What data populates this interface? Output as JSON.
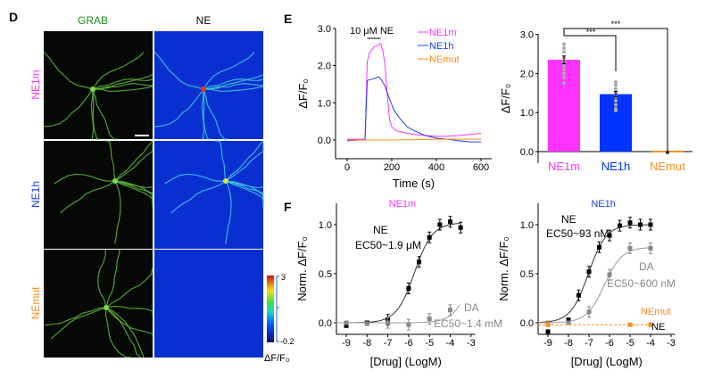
{
  "panel_d": {
    "label": "D",
    "col_headers": [
      "GRAB",
      "NE"
    ],
    "row_labels": [
      "NE1m",
      "NE1h",
      "NEmut"
    ],
    "row_colors": [
      "#ff33ff",
      "#1a3cff",
      "#ff8c1a"
    ],
    "colorbar": {
      "max": "3",
      "min": "-0.2",
      "label": "ΔF/F₀"
    }
  },
  "chart_data": [
    {
      "panel": "E",
      "type": "line",
      "ylabel": "ΔF/F₀",
      "xlabel": "Time (s)",
      "xlim": [
        -50,
        620
      ],
      "ylim": [
        -0.5,
        3.0
      ],
      "xticks": [
        "0",
        "200",
        "400",
        "600"
      ],
      "yticks": [
        "0.0",
        "1.0",
        "2.0",
        "3.0"
      ],
      "annotation": "10 μM NE",
      "stim": [
        90,
        150
      ],
      "legend_position": "top-right",
      "series": [
        {
          "name": "NE1m",
          "color": "#ff33ff",
          "x": [
            0,
            60,
            80,
            90,
            100,
            120,
            140,
            150,
            160,
            170,
            180,
            190,
            200,
            220,
            250,
            300,
            350,
            400,
            450,
            500,
            550,
            600
          ],
          "y": [
            0.02,
            0.02,
            0.02,
            2.1,
            2.35,
            2.5,
            2.55,
            2.6,
            2.4,
            2.0,
            1.2,
            0.55,
            0.35,
            0.25,
            0.2,
            0.15,
            0.12,
            0.1,
            0.1,
            0.12,
            0.15,
            0.18
          ]
        },
        {
          "name": "NE1h",
          "color": "#1a3cff",
          "x": [
            0,
            60,
            80,
            90,
            100,
            120,
            140,
            150,
            170,
            190,
            210,
            240,
            270,
            300,
            350,
            400,
            450,
            500,
            550,
            600
          ],
          "y": [
            -0.02,
            0.0,
            0.0,
            1.6,
            1.62,
            1.65,
            1.7,
            1.65,
            1.45,
            1.1,
            0.8,
            0.55,
            0.35,
            0.25,
            0.12,
            0.05,
            0.02,
            -0.02,
            -0.05,
            -0.05
          ]
        },
        {
          "name": "NEmut",
          "color": "#ff8c1a",
          "x": [
            0,
            100,
            200,
            300,
            400,
            500,
            600
          ],
          "y": [
            0.0,
            0.0,
            0.0,
            0.01,
            0.02,
            0.02,
            0.02
          ]
        }
      ]
    },
    {
      "panel": "E-bar",
      "type": "bar",
      "ylabel": "ΔF/F₀",
      "ylim": [
        -0.3,
        3.0
      ],
      "yticks": [
        "0.0",
        "1.0",
        "2.0",
        "3.0"
      ],
      "categories": [
        "NE1m",
        "NE1h",
        "NEmut"
      ],
      "colors": [
        "#ff33ff",
        "#0033ff",
        "#ff8c1a"
      ],
      "values": [
        2.35,
        1.47,
        -0.02
      ],
      "errors": [
        0.1,
        0.07,
        0.02
      ],
      "points": [
        [
          1.75,
          1.9,
          2.0,
          2.1,
          2.2,
          2.3,
          2.4,
          2.55,
          2.65,
          2.75
        ],
        [
          1.05,
          1.1,
          1.2,
          1.3,
          1.4,
          1.5,
          1.6,
          1.7,
          1.78
        ],
        [
          -0.03,
          -0.01
        ]
      ],
      "significance": [
        "***",
        "***"
      ]
    },
    {
      "panel": "F",
      "type": "scatter",
      "title": "NE1m",
      "title_color": "#ff33ff",
      "ylabel": "Norm. ΔF/F₀",
      "xlabel": "[Drug] (LogM)",
      "xlim": [
        -9.5,
        -2.8
      ],
      "ylim": [
        -0.1,
        1.2
      ],
      "xticks": [
        "-9",
        "-8",
        "-7",
        "-6",
        "-5",
        "-4",
        "-3"
      ],
      "yticks": [
        "0.0",
        "0.5",
        "1.0"
      ],
      "series": [
        {
          "name": "NE",
          "label": "NE",
          "ec50": "EC50~1.9 μM",
          "color": "#000000",
          "x": [
            -9,
            -8,
            -7,
            -6,
            -5.5,
            -5,
            -4.5,
            -4,
            -3.5
          ],
          "y": [
            -0.03,
            0.0,
            0.03,
            0.35,
            0.62,
            0.87,
            1.0,
            1.03,
            0.97
          ]
        },
        {
          "name": "DA",
          "label": "DA",
          "ec50": "EC50~1.4 mM",
          "color": "#888888",
          "x": [
            -9,
            -8,
            -7,
            -6,
            -5,
            -4
          ],
          "y": [
            0.0,
            -0.01,
            0.0,
            -0.02,
            0.04,
            0.13
          ]
        }
      ]
    },
    {
      "panel": "F2",
      "type": "scatter",
      "title": "NE1h",
      "title_color": "#1a3cff",
      "ylabel": "Norm. ΔF/F₀",
      "xlabel": "[Drug] (LogM)",
      "xlim": [
        -9.5,
        -2.8
      ],
      "ylim": [
        -0.1,
        1.2
      ],
      "xticks": [
        "-9",
        "-8",
        "-7",
        "-6",
        "-5",
        "-4",
        "-3"
      ],
      "yticks": [
        "0.0",
        "0.5",
        "1.0"
      ],
      "series": [
        {
          "name": "NE",
          "label": "NE",
          "ec50": "EC50~93 nM",
          "color": "#000000",
          "x": [
            -9,
            -8,
            -7.5,
            -7,
            -6.5,
            -6,
            -5.5,
            -5,
            -4.5,
            -4
          ],
          "y": [
            -0.09,
            0.03,
            0.28,
            0.52,
            0.77,
            0.89,
            0.99,
            1.02,
            1.0,
            1.0
          ]
        },
        {
          "name": "DA",
          "label": "DA",
          "ec50": "EC50~600 nM",
          "color": "#888888",
          "x": [
            -9,
            -8,
            -7,
            -6,
            -5,
            -4
          ],
          "y": [
            0.0,
            0.0,
            0.11,
            0.49,
            0.76,
            0.76
          ]
        },
        {
          "name": "NEmut",
          "label": "NEmut",
          "sublabel": "NE",
          "color": "#ff8c1a",
          "x": [
            -9,
            -5,
            -4
          ],
          "y": [
            -0.02,
            -0.02,
            -0.02
          ]
        }
      ]
    }
  ],
  "panel_e_label": "E",
  "panel_f_label": "F"
}
